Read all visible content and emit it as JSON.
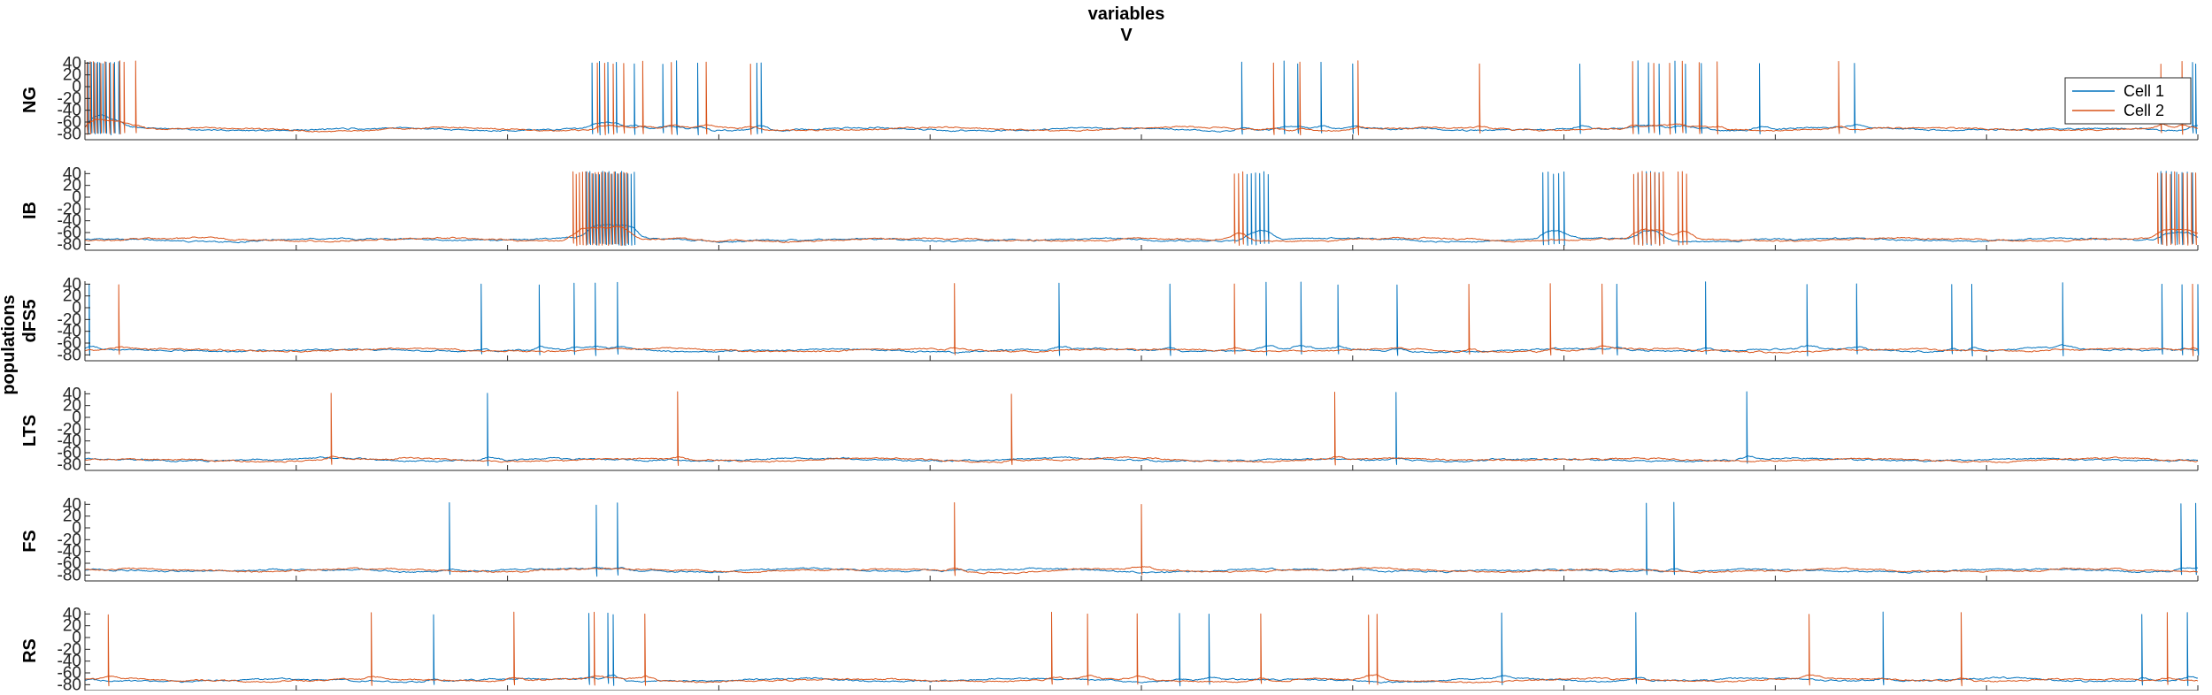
{
  "figure": {
    "title_lines": [
      "variables",
      "V"
    ],
    "ylabel": "populations"
  },
  "chart_data": {
    "type": "line",
    "title": "variables V",
    "xlabel": "",
    "ylabel": "populations",
    "xlim": [
      0,
      2000
    ],
    "x_ticks": [
      0,
      200,
      400,
      600,
      800,
      1000,
      1200,
      1400,
      1600,
      1800,
      2000
    ],
    "ylim": [
      -90,
      45
    ],
    "y_ticks": [
      -80,
      -60,
      -40,
      -20,
      0,
      20,
      40
    ],
    "legend": {
      "entries": [
        "Cell 1",
        "Cell 2"
      ],
      "placement": "top-right",
      "on_panel": "NG"
    },
    "series_colors": [
      "#0072BD",
      "#D95319"
    ],
    "baseline_mv": -72,
    "panels": [
      {
        "name": "NG",
        "series": [
          {
            "name": "Cell 1",
            "spike_times": [
              3,
              6,
              9,
              12,
              14,
              17,
              20,
              24,
              28,
              32,
              480,
              487,
              495,
              503,
              520,
              547,
              560,
              580,
              636,
              640,
              1095,
              1135,
              1148,
              1170,
              1200,
              1415,
              1470,
              1480,
              1490,
              1505,
              1515,
              1530,
              1585,
              1675,
              1995,
              1998
            ]
          },
          {
            "name": "Cell 2",
            "spike_times": [
              2,
              5,
              8,
              11,
              15,
              19,
              23,
              27,
              33,
              37,
              48,
              485,
              492,
              500,
              510,
              528,
              555,
              588,
              630,
              1125,
              1150,
              1205,
              1320,
              1465,
              1485,
              1500,
              1512,
              1528,
              1545,
              1660,
              1965,
              1985
            ]
          }
        ]
      },
      {
        "name": "IB",
        "series": [
          {
            "name": "Cell 1",
            "spike_times": [
              475,
              478,
              481,
              484,
              487,
              490,
              493,
              496,
              499,
              502,
              505,
              508,
              511,
              514,
              517,
              520,
              1100,
              1104,
              1108,
              1112,
              1116,
              1120,
              1380,
              1385,
              1390,
              1395,
              1400,
              1470,
              1474,
              1478,
              1482,
              1486,
              1490,
              1965,
              1970,
              1975,
              1980,
              1985,
              1990,
              1995
            ]
          },
          {
            "name": "Cell 2",
            "spike_times": [
              462,
              465,
              468,
              471,
              474,
              477,
              480,
              483,
              486,
              489,
              492,
              495,
              498,
              501,
              504,
              507,
              510,
              513,
              1088,
              1092,
              1096,
              1466,
              1470,
              1474,
              1478,
              1482,
              1486,
              1490,
              1494,
              1508,
              1512,
              1516,
              1962,
              1966,
              1970,
              1974,
              1978,
              1982,
              1986,
              1990,
              1994,
              1998
            ]
          }
        ]
      },
      {
        "name": "dFS5",
        "series": [
          {
            "name": "Cell 1",
            "spike_times": [
              4,
              375,
              430,
              463,
              483,
              504,
              922,
              1027,
              1118,
              1151,
              1186,
              1242,
              1450,
              1534,
              1630,
              1677,
              1767,
              1786,
              1872,
              1966,
              1985,
              2000
            ]
          },
          {
            "name": "Cell 2",
            "spike_times": [
              32,
              823,
              1088,
              1310,
              1387,
              1436,
              1995
            ]
          }
        ]
      },
      {
        "name": "LTS",
        "series": [
          {
            "name": "Cell 1",
            "spike_times": [
              381,
              1241,
              1573
            ]
          },
          {
            "name": "Cell 2",
            "spike_times": [
              233,
              561,
              877,
              1183
            ]
          }
        ]
      },
      {
        "name": "FS",
        "series": [
          {
            "name": "Cell 1",
            "spike_times": [
              345,
              484,
              504,
              1478,
              1504,
              1984,
              1998
            ]
          },
          {
            "name": "Cell 2",
            "spike_times": [
              823,
              1000
            ]
          }
        ]
      },
      {
        "name": "RS",
        "series": [
          {
            "name": "Cell 1",
            "spike_times": [
              330,
              477,
              495,
              500,
              1036,
              1064,
              1341,
              1468,
              1702,
              1947,
              1990
            ]
          },
          {
            "name": "Cell 2",
            "spike_times": [
              22,
              271,
              406,
              482,
              530,
              915,
              949,
              996,
              1113,
              1215,
              1223,
              1632,
              1776,
              1971
            ]
          }
        ]
      }
    ]
  }
}
